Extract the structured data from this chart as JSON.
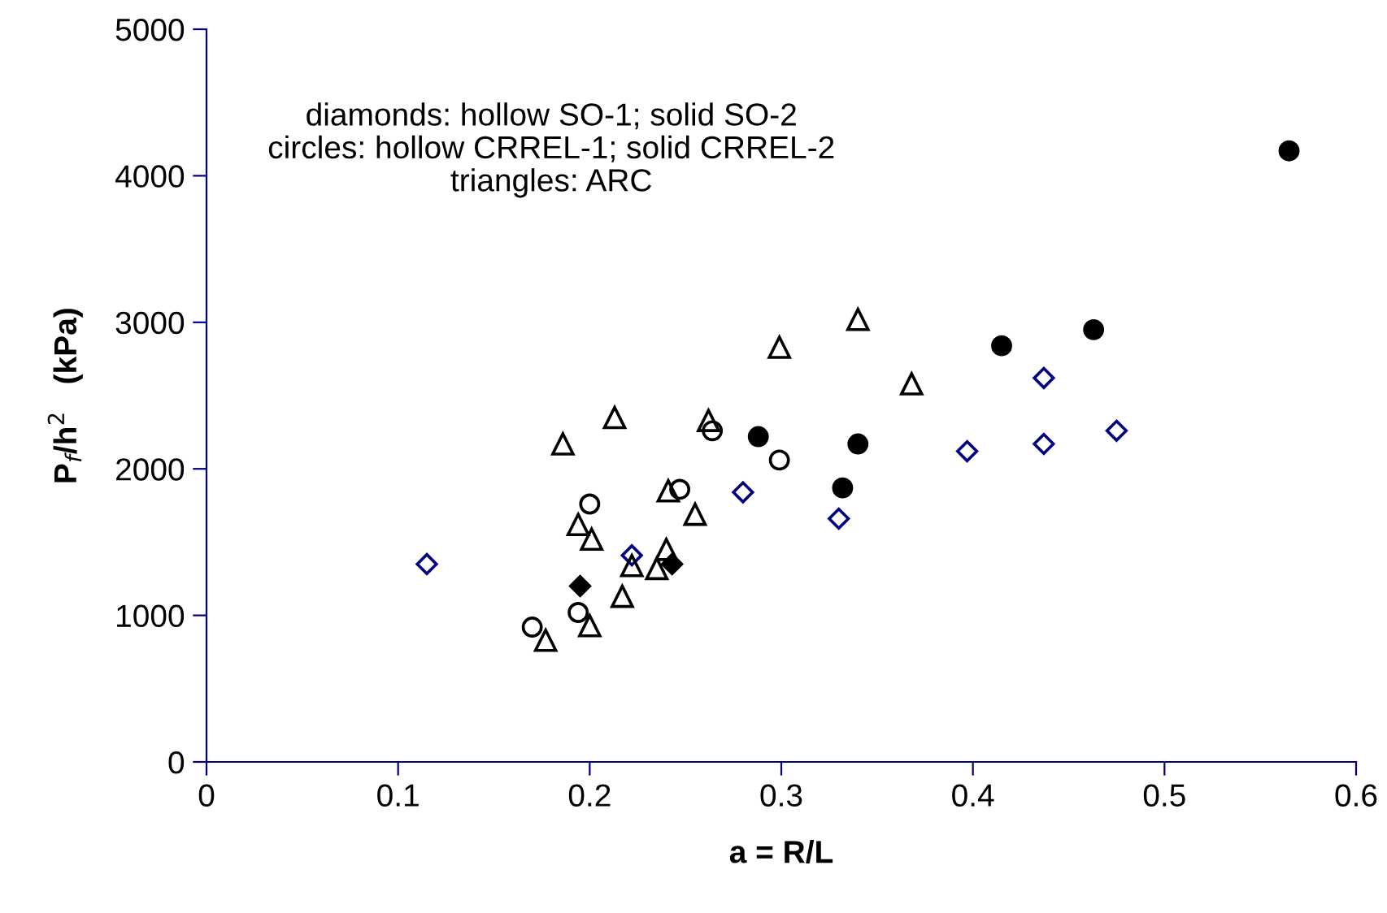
{
  "chart_data": {
    "type": "scatter",
    "xlabel": "a = R/L",
    "ylabel": "P$_{f}$/h$^{2}$   (kPa)",
    "xlim": [
      0,
      0.6
    ],
    "xticks": [
      {
        "value": 0,
        "label": "0"
      },
      0.1,
      0.2,
      0.3,
      0.4,
      0.5,
      0.6
    ],
    "ylim": [
      0,
      5000
    ],
    "yticks": [
      0,
      1000,
      2000,
      3000,
      4000,
      5000
    ],
    "grid": false,
    "legend": false,
    "annotations": [
      "diamonds: hollow SO-1; solid SO-2\ncircles: hollow CRREL-1; solid CRREL-2\ntriangles: ARC"
    ],
    "series": [
      {
        "marker": "diamond",
        "color": "#000080",
        "x": [
          0.115,
          0.222,
          0.28,
          0.33,
          0.397,
          0.437,
          0.437,
          0.475
        ],
        "values": [
          1350,
          1410,
          1840,
          1660,
          2120,
          2170,
          2620,
          2260
        ]
      },
      {
        "marker": "diamond",
        "color": "#000000",
        "x": [
          0.195,
          0.243
        ],
        "values": [
          1200,
          1350
        ]
      },
      {
        "marker": "circle",
        "color": "#000000",
        "x": [
          0.17,
          0.194,
          0.2,
          0.247,
          0.264,
          0.299
        ],
        "values": [
          920,
          1020,
          1760,
          1860,
          2260,
          2060
        ]
      },
      {
        "marker": "circle",
        "color": "#000000",
        "x": [
          0.288,
          0.34,
          0.332,
          0.415,
          0.463,
          0.565
        ],
        "values": [
          2220,
          2170,
          1870,
          2840,
          2950,
          4170
        ]
      },
      {
        "marker": "triangle",
        "color": "#000000",
        "x": [
          0.177,
          0.2,
          0.186,
          0.213,
          0.194,
          0.201,
          0.217,
          0.222,
          0.235,
          0.24,
          0.255,
          0.241,
          0.262,
          0.299,
          0.34,
          0.368
        ],
        "values": [
          830,
          930,
          2170,
          2350,
          1620,
          1520,
          1130,
          1340,
          1320,
          1450,
          1690,
          1850,
          2330,
          2830,
          3020,
          2580
        ]
      }
    ]
  }
}
